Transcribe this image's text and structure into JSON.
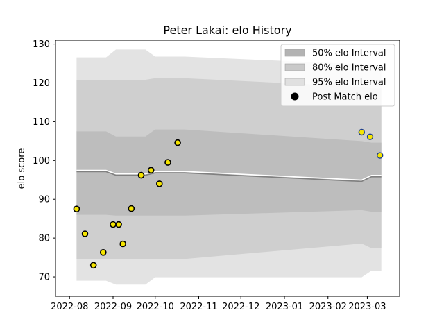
{
  "chart_data": {
    "type": "line",
    "title": "Peter Lakai: elo History",
    "xlabel": "",
    "ylabel": "elo score",
    "xlim": [
      "2022-07-22",
      "2023-03-24"
    ],
    "ylim": [
      65,
      131
    ],
    "x_ticks": [
      "2022-08",
      "2022-09",
      "2022-10",
      "2022-11",
      "2022-12",
      "2023-01",
      "2023-02",
      "2023-03"
    ],
    "y_ticks": [
      70,
      80,
      90,
      100,
      110,
      120,
      130
    ],
    "grid": false,
    "legend_position": "top-right",
    "band_colors": {
      "interval_95": "#e3e3e3",
      "interval_80": "#cfcfcf",
      "interval_50": "#bdbdbd",
      "mean_line": "#808080",
      "point_fill": "#f5e400",
      "point_edge_early": "#000000",
      "point_edge_late": "#1f3f8a"
    },
    "legend": [
      {
        "label": "50% elo Interval",
        "kind": "band",
        "color": "#b3b3b3"
      },
      {
        "label": "80% elo Interval",
        "kind": "band",
        "color": "#c9c9c9"
      },
      {
        "label": "95% elo Interval",
        "kind": "band",
        "color": "#e0e0e0"
      },
      {
        "label": "Post Match elo",
        "kind": "marker",
        "color": "#000000"
      }
    ],
    "bands": {
      "x": [
        "2022-08-06",
        "2022-08-27",
        "2022-09-03",
        "2022-09-24",
        "2022-10-01",
        "2022-10-22",
        "2023-02-25",
        "2023-03-04",
        "2023-03-11"
      ],
      "mean": [
        97.1,
        97.1,
        96.2,
        96.2,
        96.8,
        96.8,
        94.6,
        95.8,
        95.8
      ],
      "interval_50": [
        [
          86.0,
          107.5
        ],
        [
          86.0,
          107.5
        ],
        [
          85.8,
          106.2
        ],
        [
          85.8,
          106.2
        ],
        [
          85.8,
          108.0
        ],
        [
          85.8,
          108.0
        ],
        [
          87.2,
          105.0
        ],
        [
          86.8,
          104.6
        ],
        [
          86.8,
          104.6
        ]
      ],
      "interval_80": [
        [
          74.5,
          120.8
        ],
        [
          74.5,
          120.8
        ],
        [
          74.5,
          120.8
        ],
        [
          74.5,
          120.8
        ],
        [
          74.6,
          121.2
        ],
        [
          74.6,
          121.2
        ],
        [
          78.6,
          119.0
        ],
        [
          77.4,
          118.6
        ],
        [
          77.4,
          118.6
        ]
      ],
      "interval_95": [
        [
          69.0,
          126.6
        ],
        [
          69.0,
          126.6
        ],
        [
          68.0,
          128.6
        ],
        [
          68.0,
          128.6
        ],
        [
          69.9,
          126.8
        ],
        [
          69.9,
          126.8
        ],
        [
          69.9,
          124.8
        ],
        [
          71.6,
          124.8
        ],
        [
          71.6,
          124.8
        ]
      ]
    },
    "series": [
      {
        "name": "Post Match elo",
        "points": [
          {
            "x": "2022-08-06",
            "y": 87.5
          },
          {
            "x": "2022-08-12",
            "y": 81.1
          },
          {
            "x": "2022-08-18",
            "y": 73.0
          },
          {
            "x": "2022-08-25",
            "y": 76.3
          },
          {
            "x": "2022-09-01",
            "y": 83.5
          },
          {
            "x": "2022-09-05",
            "y": 83.5
          },
          {
            "x": "2022-09-08",
            "y": 78.5
          },
          {
            "x": "2022-09-14",
            "y": 87.6
          },
          {
            "x": "2022-09-21",
            "y": 96.2
          },
          {
            "x": "2022-09-28",
            "y": 97.5
          },
          {
            "x": "2022-10-04",
            "y": 94.0
          },
          {
            "x": "2022-10-10",
            "y": 99.5
          },
          {
            "x": "2022-10-17",
            "y": 104.6
          },
          {
            "x": "2023-02-25",
            "y": 107.3
          },
          {
            "x": "2023-03-03",
            "y": 106.1
          },
          {
            "x": "2023-03-10",
            "y": 101.3
          }
        ]
      }
    ]
  }
}
